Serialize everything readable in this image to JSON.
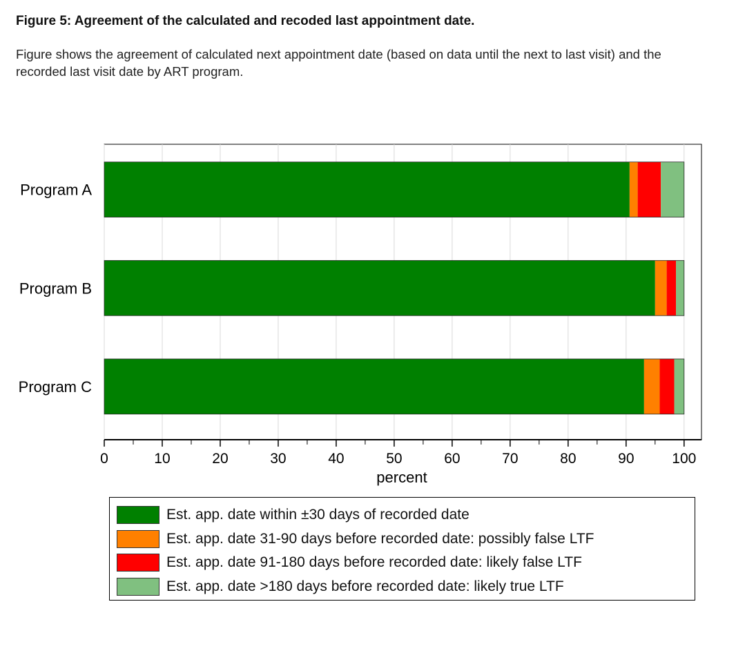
{
  "figure": {
    "title": "Figure 5: Agreement of the calculated and recoded last appointment date.",
    "caption": "Figure shows the agreement of calculated next appointment date (based on data until the next to last visit) and the recorded last visit date by ART program."
  },
  "chart_data": {
    "type": "bar",
    "orientation": "horizontal",
    "stacked": true,
    "categories": [
      "Program A",
      "Program B",
      "Program C"
    ],
    "series": [
      {
        "name": "Est. app. date within ±30 days of recorded date",
        "color": "#008000",
        "values": [
          90.6,
          95.0,
          93.1
        ]
      },
      {
        "name": "Est. app. date 31-90 days before recorded date: possibly false LTF",
        "color": "#FF8000",
        "values": [
          1.4,
          2.0,
          2.7
        ]
      },
      {
        "name": "Est. app. date 91-180 days before recorded date: likely false LTF",
        "color": "#FF0000",
        "values": [
          4.0,
          1.6,
          2.5
        ]
      },
      {
        "name": "Est. app. date >180 days before recorded date: likely true LTF",
        "color": "#80C080",
        "values": [
          4.0,
          1.4,
          1.7
        ]
      }
    ],
    "xlabel": "percent",
    "ylabel": "",
    "xlim": [
      0,
      103
    ],
    "xticks": [
      0,
      10,
      20,
      30,
      40,
      50,
      60,
      70,
      80,
      90,
      100
    ],
    "grid": true,
    "legend_position": "bottom"
  }
}
